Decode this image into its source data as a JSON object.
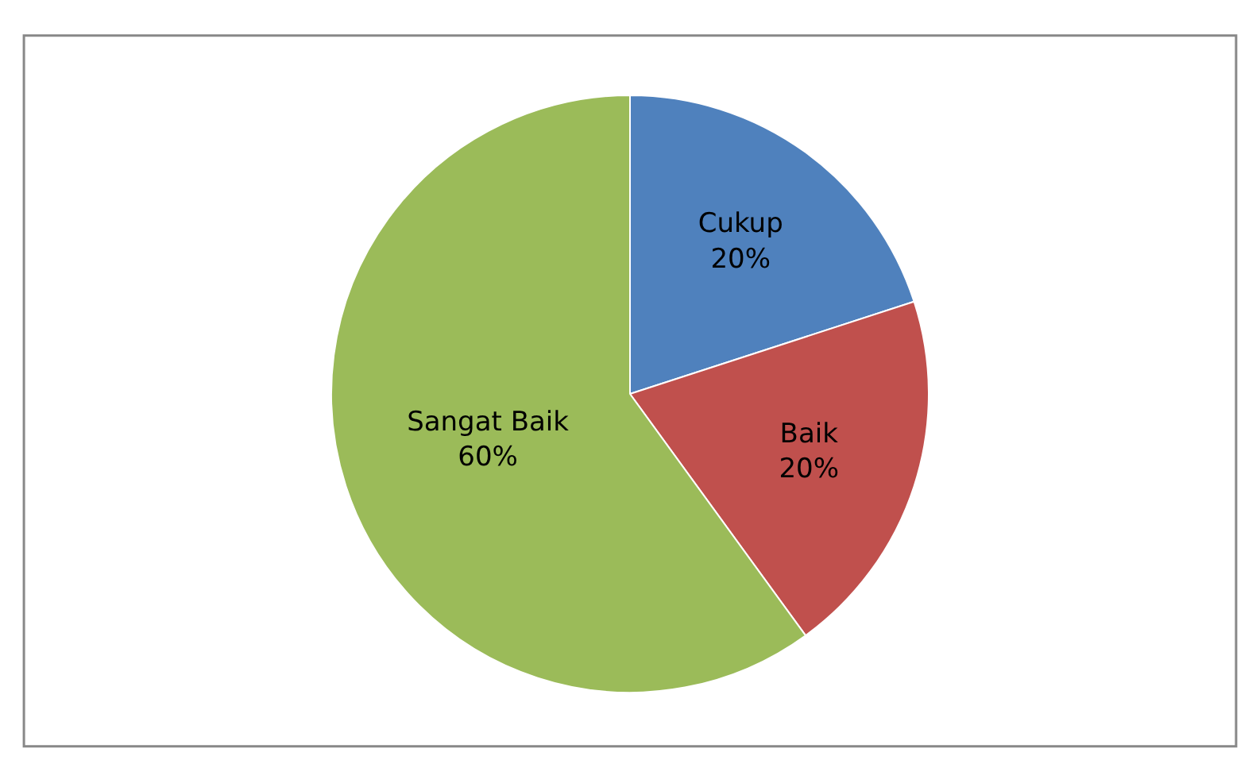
{
  "chart_data": {
    "type": "pie",
    "categories": [
      "Cukup",
      "Baik",
      "Sangat Baik"
    ],
    "values": [
      20,
      20,
      60
    ],
    "colors": [
      "#4f81bd",
      "#c0504d",
      "#9bbb59"
    ],
    "value_labels": [
      "20%",
      "20%",
      "60%"
    ],
    "legend": false
  }
}
